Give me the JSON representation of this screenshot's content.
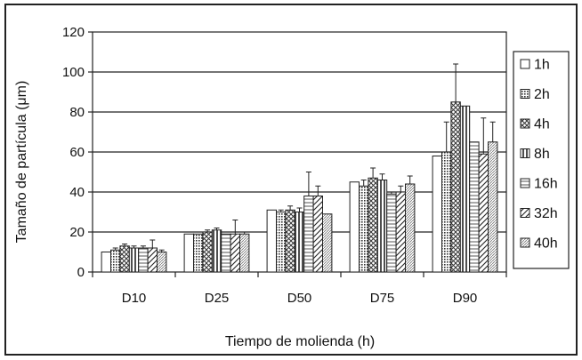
{
  "chart_data": {
    "type": "bar",
    "title": "",
    "xlabel": "Tiempo de molienda (h)",
    "ylabel": "Tamaño de partícula (μm)",
    "ylim": [
      0,
      120
    ],
    "yticks": [
      0,
      20,
      40,
      60,
      80,
      100,
      120
    ],
    "grid": true,
    "legend_position": "right",
    "categories": [
      "D10",
      "D25",
      "D50",
      "D75",
      "D90"
    ],
    "series": [
      {
        "name": "1h",
        "pattern": "blank",
        "values": [
          10,
          19,
          31,
          45,
          58
        ],
        "errors": [
          0,
          0,
          0,
          0,
          0
        ]
      },
      {
        "name": "2h",
        "pattern": "dots",
        "values": [
          11,
          19,
          30,
          43,
          60
        ],
        "errors": [
          1,
          0,
          1,
          3,
          15
        ]
      },
      {
        "name": "4h",
        "pattern": "crosshatch",
        "values": [
          13,
          20,
          31,
          47,
          85
        ],
        "errors": [
          1,
          1,
          2,
          5,
          19
        ]
      },
      {
        "name": "8h",
        "pattern": "vertical",
        "values": [
          12,
          21,
          30,
          46,
          83
        ],
        "errors": [
          1,
          1,
          2,
          3,
          0
        ]
      },
      {
        "name": "16h",
        "pattern": "hlines",
        "values": [
          12,
          19,
          38,
          39,
          65
        ],
        "errors": [
          1,
          0,
          12,
          1,
          0
        ]
      },
      {
        "name": "32h",
        "pattern": "diagonal",
        "values": [
          12,
          19,
          38,
          40,
          59
        ],
        "errors": [
          4,
          7,
          5,
          3,
          18
        ]
      },
      {
        "name": "40h",
        "pattern": "fine",
        "values": [
          10,
          19,
          29,
          44,
          65
        ],
        "errors": [
          1,
          1,
          0,
          4,
          10
        ]
      }
    ]
  }
}
